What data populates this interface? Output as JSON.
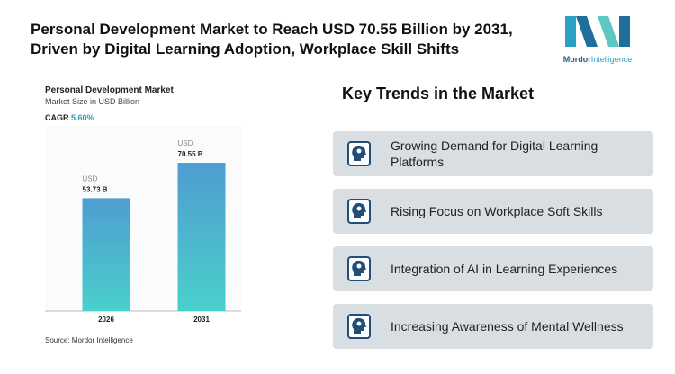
{
  "header": {
    "title": [
      "Personal Development Market to Reach USD 70.55 Billion by 2031,",
      "Driven by Digital Learning Adoption, Workplace Skill Shifts"
    ]
  },
  "logo": {
    "brand": "Mordor",
    "suffix": "Intelligence"
  },
  "chart_data": {
    "type": "bar",
    "title": "Personal Development Market",
    "subtitle": "Market Size in USD Billion",
    "cagr_label": "CAGR",
    "cagr": "5.60%",
    "categories": [
      "2026",
      "2031"
    ],
    "values": [
      53.73,
      70.55
    ],
    "value_labels": [
      "53.73 B",
      "70.55 B"
    ],
    "value_label_unit": "USD",
    "color": [
      "#4f9dd0",
      "#4ad0cc"
    ],
    "ylim": [
      0,
      80
    ],
    "grid": false,
    "source": "Source: Mordor Intelligence"
  },
  "trends": {
    "title": "Key Trends in the Market",
    "items": [
      "Growing Demand for Digital Learning Platforms",
      "Rising Focus on Workplace Soft Skills",
      "Integration of AI in Learning Experiences",
      "Increasing Awareness of Mental Wellness"
    ]
  }
}
